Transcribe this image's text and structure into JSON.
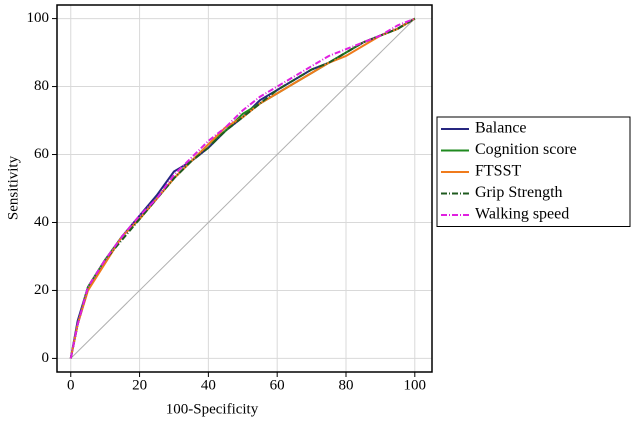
{
  "chart_data": {
    "type": "line",
    "xlabel": "100-Specificity",
    "ylabel": "Sensitivity",
    "x": [
      0,
      2,
      5,
      10,
      15,
      20,
      25,
      30,
      35,
      40,
      45,
      50,
      55,
      60,
      65,
      70,
      75,
      80,
      85,
      90,
      95,
      100
    ],
    "series": [
      {
        "name": "Balance",
        "color": "#262680",
        "dash": "none",
        "values": [
          0,
          11,
          21,
          29,
          36,
          42,
          48,
          55,
          58,
          62,
          67,
          71,
          76,
          79,
          82,
          85,
          87,
          90,
          93,
          95,
          97,
          100
        ]
      },
      {
        "name": "Cognition score",
        "color": "#1f8a1f",
        "dash": "none",
        "values": [
          0,
          10,
          21,
          29,
          36,
          41,
          47,
          53,
          58,
          63,
          67,
          72,
          75,
          78,
          81,
          84,
          87,
          90,
          93,
          95,
          97,
          100
        ]
      },
      {
        "name": "FTSST",
        "color": "#f07b1c",
        "dash": "none",
        "values": [
          0,
          10,
          20,
          28,
          36,
          41,
          47,
          53,
          58,
          63,
          68,
          71,
          75,
          78,
          81,
          84,
          87,
          89,
          92,
          95,
          97,
          100
        ]
      },
      {
        "name": "Grip Strength",
        "color": "#1f5a1f",
        "dash": "6 2 1 2",
        "values": [
          0,
          10,
          21,
          29,
          35,
          41,
          47,
          53,
          58,
          62,
          67,
          71,
          75,
          79,
          82,
          85,
          87,
          90,
          93,
          95,
          97,
          100
        ]
      },
      {
        "name": "Walking speed",
        "color": "#e020e0",
        "dash": "6 2 1 2",
        "values": [
          0,
          10,
          21,
          29,
          36,
          42,
          47,
          54,
          59,
          64,
          68,
          73,
          77,
          80,
          83,
          86,
          89,
          91,
          93,
          95,
          98,
          100
        ]
      }
    ],
    "reference_line": {
      "color": "#b0b0b0",
      "x": [
        0,
        100
      ],
      "y": [
        0,
        100
      ]
    },
    "xlim": [
      -4,
      105
    ],
    "ylim": [
      -4,
      104
    ],
    "xticks": [
      0,
      20,
      40,
      60,
      80,
      100
    ],
    "yticks": [
      0,
      20,
      40,
      60,
      80,
      100
    ],
    "grid": true,
    "legend": "right"
  }
}
